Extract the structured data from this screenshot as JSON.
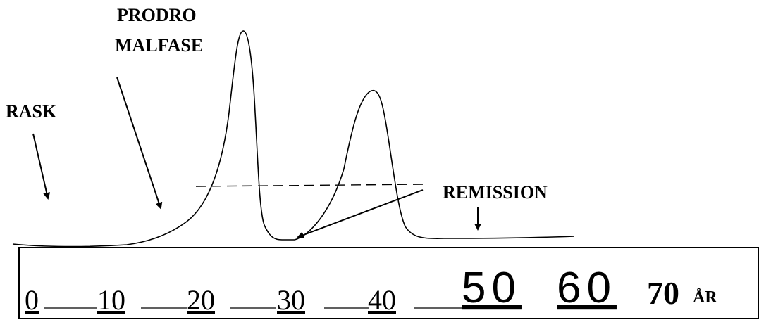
{
  "labels": {
    "rask": "RASK",
    "prodro_line1": "PRODRO",
    "prodro_line2": "MALFASE",
    "remission": "REMISSION"
  },
  "axis": {
    "ticks": [
      "0",
      "10",
      "20",
      "30",
      "40",
      "50",
      "60",
      "70"
    ],
    "unit": "ÅR"
  },
  "colors": {
    "ink": "#000000",
    "background": "#ffffff"
  }
}
